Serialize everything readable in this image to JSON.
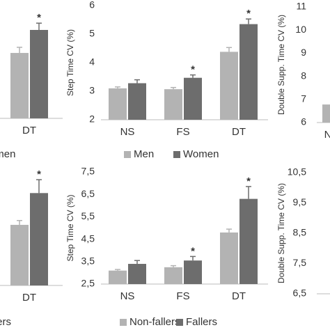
{
  "chart_data": [
    {
      "type": "bar",
      "categories": [
        "DT"
      ],
      "series": [
        {
          "name": "Men",
          "color": "#b3b3b3",
          "values": [
            2.9
          ],
          "errors": [
            0.25
          ]
        },
        {
          "name": "Women",
          "color": "#6d6d6d",
          "values": [
            3.92
          ],
          "errors": [
            0.3
          ]
        }
      ],
      "ylim": [
        0,
        5
      ],
      "annotations": [
        {
          "series": 1,
          "category": 0,
          "text": "*"
        }
      ]
    },
    {
      "type": "bar",
      "ylabel": "Step Time CV (%)",
      "categories": [
        "NS",
        "FS",
        "DT"
      ],
      "series": [
        {
          "name": "Men",
          "color": "#b3b3b3",
          "values": [
            3.1,
            3.07,
            4.38
          ],
          "errors": [
            0.05,
            0.06,
            0.15
          ]
        },
        {
          "name": "Women",
          "color": "#6d6d6d",
          "values": [
            3.28,
            3.47,
            5.35
          ],
          "errors": [
            0.12,
            0.1,
            0.18
          ]
        }
      ],
      "ylim": [
        2,
        6
      ],
      "yticks": [
        2,
        3,
        4,
        5,
        6
      ],
      "annotations": [
        {
          "series": 1,
          "category": 1,
          "text": "*"
        },
        {
          "series": 1,
          "category": 2,
          "text": "*"
        }
      ]
    },
    {
      "type": "bar",
      "ylabel": "Double Supp. Time CV (%)",
      "categories": [
        "NS"
      ],
      "series": [
        {
          "color": "#b3b3b3",
          "values": [
            6.78
          ]
        }
      ],
      "ylim": [
        6,
        11
      ],
      "yticks": [
        6,
        7,
        8,
        9,
        10,
        11
      ]
    },
    {
      "type": "bar",
      "categories": [
        "DT"
      ],
      "series": [
        {
          "name": "Non-fallers",
          "color": "#b3b3b3",
          "values": [
            2.67
          ],
          "errors": [
            0.19
          ]
        },
        {
          "name": "Fallers",
          "color": "#6d6d6d",
          "values": [
            4.07
          ],
          "errors": [
            0.59
          ]
        }
      ],
      "ylim": [
        0,
        5
      ],
      "annotations": [
        {
          "series": 1,
          "category": 0,
          "text": "*"
        }
      ]
    },
    {
      "type": "bar",
      "ylabel": "Step Time CV (%)",
      "categories": [
        "NS",
        "FS",
        "DT"
      ],
      "series": [
        {
          "name": "Non-fallers",
          "color": "#b3b3b3",
          "values": [
            3.1,
            3.25,
            4.8
          ],
          "errors": [
            0.05,
            0.07,
            0.15
          ]
        },
        {
          "name": "Fallers",
          "color": "#6d6d6d",
          "values": [
            3.4,
            3.55,
            6.3
          ],
          "errors": [
            0.15,
            0.18,
            0.55
          ]
        }
      ],
      "ylim": [
        2.5,
        7.5
      ],
      "yticks": [
        {
          "value": 2.5,
          "label": "2,5"
        },
        {
          "value": 3.5,
          "label": "3,5"
        },
        {
          "value": 4.5,
          "label": "4,5"
        },
        {
          "value": 5.5,
          "label": "5,5"
        },
        {
          "value": 6.5,
          "label": "6,5"
        },
        {
          "value": 7.5,
          "label": "7,5"
        }
      ],
      "annotations": [
        {
          "series": 1,
          "category": 1,
          "text": "*"
        },
        {
          "series": 1,
          "category": 2,
          "text": "*"
        }
      ]
    },
    {
      "type": "bar",
      "ylabel": "Double Supp. Time CV (%)",
      "categories": [],
      "series": [],
      "ylim": [
        6.5,
        10.5
      ],
      "yticks": [
        {
          "value": 6.5,
          "label": "6,5"
        },
        {
          "value": 7.5,
          "label": "7,5"
        },
        {
          "value": 8.5,
          "label": "8,5"
        },
        {
          "value": 9.5,
          "label": "9,5"
        },
        {
          "value": 10.5,
          "label": "10,5"
        }
      ]
    }
  ]
}
